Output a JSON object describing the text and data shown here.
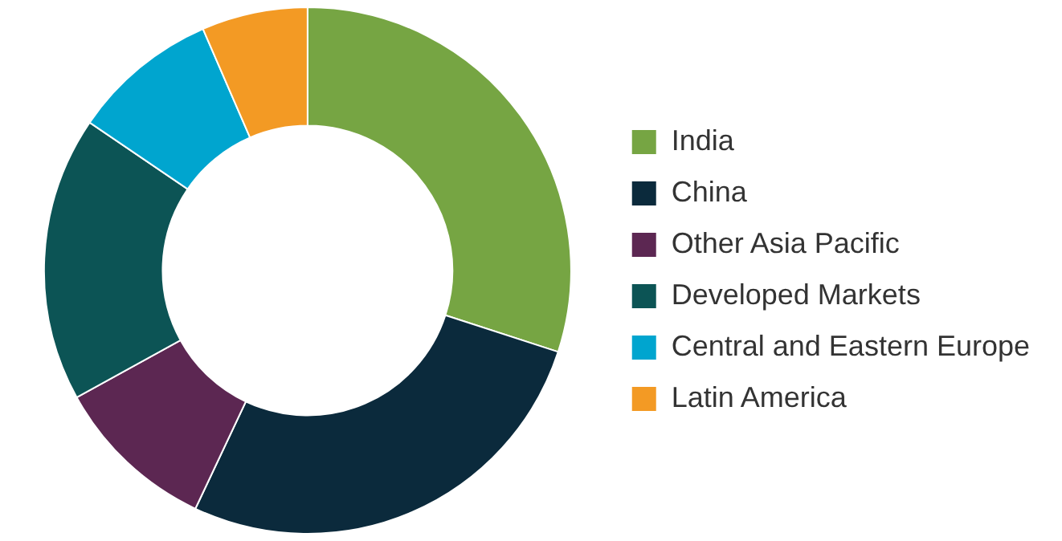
{
  "chart_data": {
    "type": "donut",
    "categories": [
      "India",
      "China",
      "Other Asia Pacific",
      "Developed Markets",
      "Central and Eastern Europe",
      "Latin America"
    ],
    "values": [
      30,
      27,
      10,
      17.5,
      9,
      6.5
    ],
    "colors": [
      "#76a543",
      "#0b2a3c",
      "#5c2752",
      "#0c5455",
      "#00a5cf",
      "#f39a24"
    ],
    "legend": "right"
  }
}
